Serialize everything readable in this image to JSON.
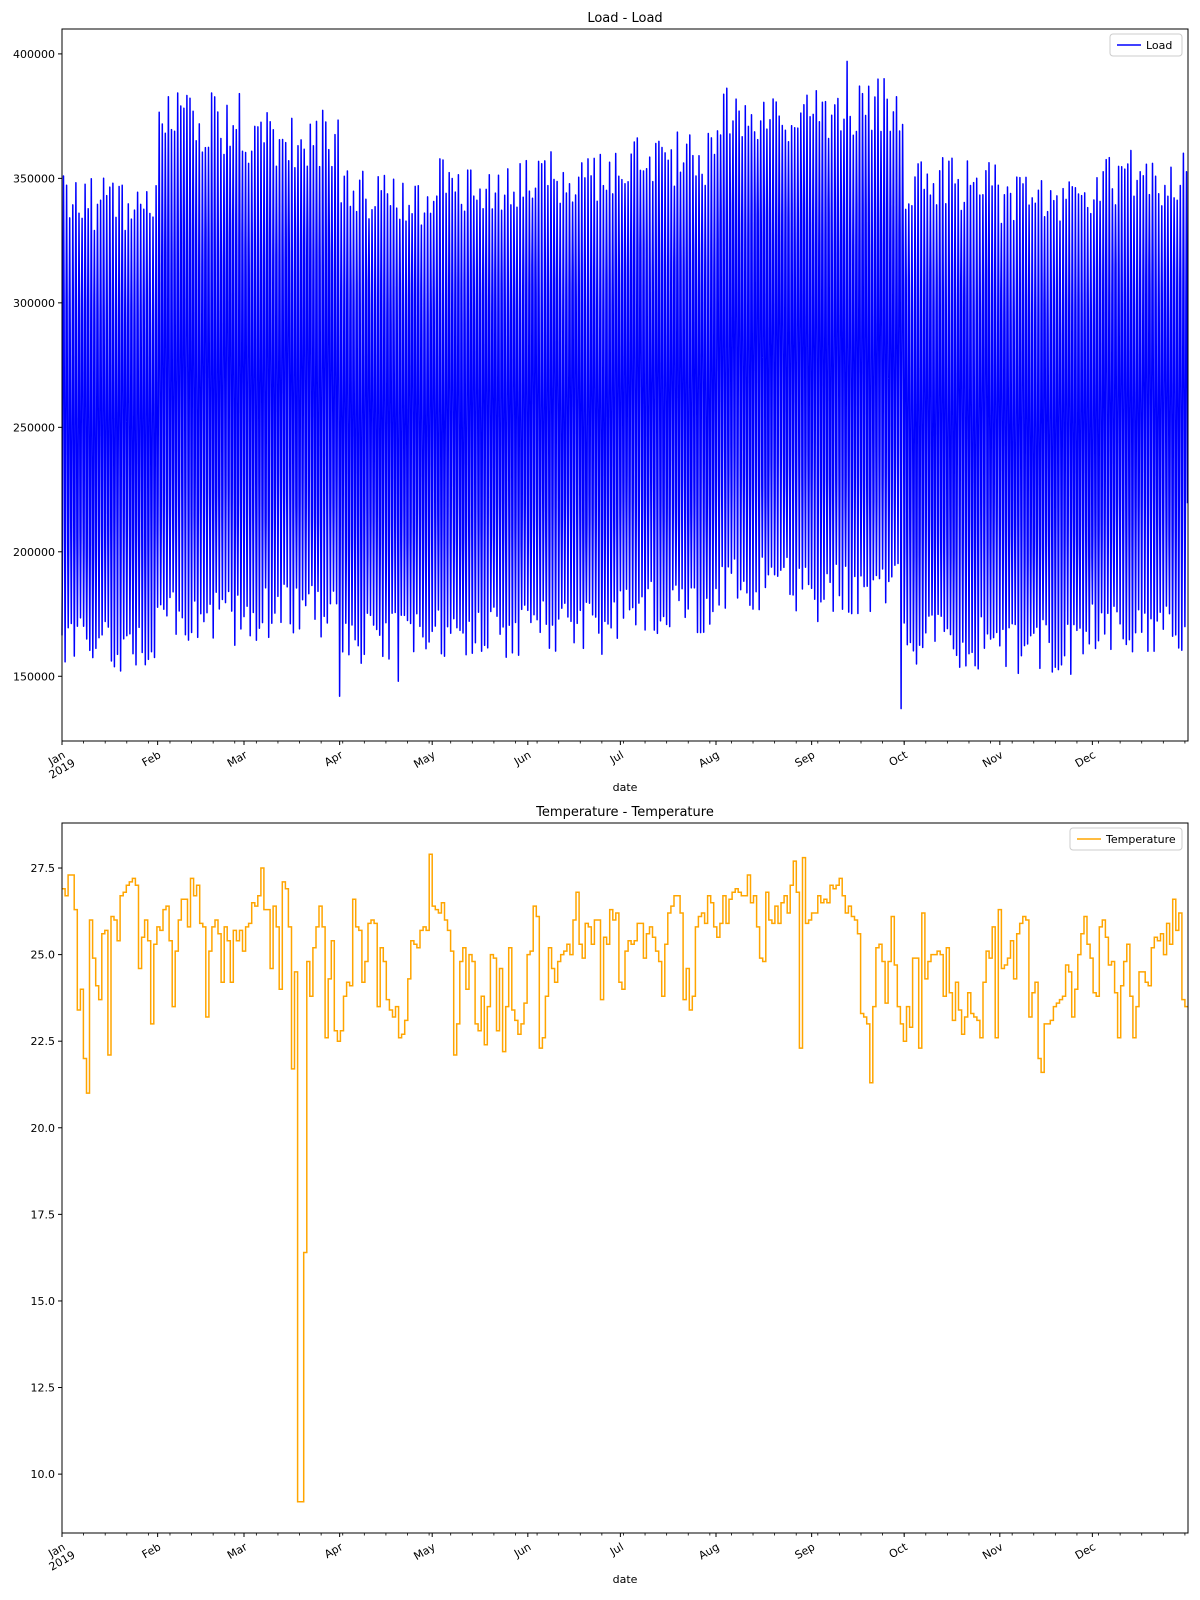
{
  "chart_data": [
    {
      "type": "line",
      "title": "Load - Load",
      "xlabel": "date",
      "ylabel": "",
      "x_range": [
        "2019-01-01",
        "2019-12-31"
      ],
      "ylim": [
        124000,
        410000
      ],
      "y_ticks": [
        150000,
        200000,
        250000,
        300000,
        350000,
        400000
      ],
      "y_tick_labels": [
        "150000",
        "200000",
        "250000",
        "300000",
        "350000",
        "400000"
      ],
      "x_tick_labels": [
        {
          "date": "2019-01-01",
          "label": "Jan",
          "sublabel": "2019"
        },
        {
          "date": "2019-02-01",
          "label": "Feb"
        },
        {
          "date": "2019-03-01",
          "label": "Mar"
        },
        {
          "date": "2019-04-01",
          "label": "Apr"
        },
        {
          "date": "2019-05-01",
          "label": "May"
        },
        {
          "date": "2019-06-01",
          "label": "Jun"
        },
        {
          "date": "2019-07-01",
          "label": "Jul"
        },
        {
          "date": "2019-08-01",
          "label": "Aug"
        },
        {
          "date": "2019-09-01",
          "label": "Sep"
        },
        {
          "date": "2019-10-01",
          "label": "Oct"
        },
        {
          "date": "2019-11-01",
          "label": "Nov"
        },
        {
          "date": "2019-12-01",
          "label": "Dec"
        }
      ],
      "legend_position": "top-right",
      "grid": false,
      "series": [
        {
          "name": "Load",
          "color": "#0000ff",
          "daily_profile": "each day swings from a night minimum to an afternoon peak",
          "monthly_envelope": [
            {
              "month": "Jan",
              "daily_min": 163000,
              "daily_max": 340000
            },
            {
              "month": "Feb",
              "daily_min": 172000,
              "daily_max": 372000
            },
            {
              "month": "Mar",
              "daily_min": 176000,
              "daily_max": 366000
            },
            {
              "month": "Apr",
              "daily_min": 166000,
              "daily_max": 342000
            },
            {
              "month": "May",
              "daily_min": 168000,
              "daily_max": 348000
            },
            {
              "month": "Jun",
              "daily_min": 170000,
              "daily_max": 350000
            },
            {
              "month": "Jul",
              "daily_min": 178000,
              "daily_max": 358000
            },
            {
              "month": "Aug",
              "daily_min": 186000,
              "daily_max": 376000
            },
            {
              "month": "Sep",
              "daily_min": 184000,
              "daily_max": 378000
            },
            {
              "month": "Oct",
              "daily_min": 164000,
              "daily_max": 348000
            },
            {
              "month": "Nov",
              "daily_min": 162000,
              "daily_max": 342000
            },
            {
              "month": "Dec",
              "daily_min": 170000,
              "daily_max": 350000
            }
          ],
          "notable_points": [
            {
              "x": "2019-04-01",
              "y": 142000
            },
            {
              "x": "2019-04-20",
              "y": 148000
            },
            {
              "x": "2019-09-12",
              "y": 397000
            },
            {
              "x": "2019-09-30",
              "y": 137000
            }
          ]
        }
      ]
    },
    {
      "type": "line",
      "title": "Temperature - Temperature",
      "xlabel": "date",
      "ylabel": "",
      "x_range": [
        "2019-01-01",
        "2019-12-31"
      ],
      "ylim": [
        8.3,
        28.8
      ],
      "y_ticks": [
        10.0,
        12.5,
        15.0,
        17.5,
        20.0,
        22.5,
        25.0,
        27.5
      ],
      "y_tick_labels": [
        "10.0",
        "12.5",
        "15.0",
        "17.5",
        "20.0",
        "22.5",
        "25.0",
        "27.5"
      ],
      "x_tick_labels": [
        {
          "date": "2019-01-01",
          "label": "Jan",
          "sublabel": "2019"
        },
        {
          "date": "2019-02-01",
          "label": "Feb"
        },
        {
          "date": "2019-03-01",
          "label": "Mar"
        },
        {
          "date": "2019-04-01",
          "label": "Apr"
        },
        {
          "date": "2019-05-01",
          "label": "May"
        },
        {
          "date": "2019-06-01",
          "label": "Jun"
        },
        {
          "date": "2019-07-01",
          "label": "Jul"
        },
        {
          "date": "2019-08-01",
          "label": "Aug"
        },
        {
          "date": "2019-09-01",
          "label": "Sep"
        },
        {
          "date": "2019-10-01",
          "label": "Oct"
        },
        {
          "date": "2019-11-01",
          "label": "Nov"
        },
        {
          "date": "2019-12-01",
          "label": "Dec"
        }
      ],
      "legend_position": "top-right",
      "grid": false,
      "series": [
        {
          "name": "Temperature",
          "color": "#ffa500",
          "step": true,
          "daily_values": [
            26.9,
            26.7,
            27.3,
            27.3,
            26.3,
            23.4,
            24.0,
            22.0,
            21.0,
            26.0,
            24.9,
            24.1,
            23.7,
            25.6,
            25.7,
            22.1,
            26.1,
            26.0,
            25.4,
            26.7,
            26.8,
            27.0,
            27.1,
            27.2,
            27.0,
            24.6,
            25.5,
            26.0,
            25.4,
            23.0,
            25.3,
            25.8,
            25.7,
            26.3,
            26.4,
            25.4,
            23.5,
            25.1,
            26.0,
            26.6,
            26.6,
            25.8,
            27.2,
            26.7,
            27.0,
            25.9,
            25.8,
            23.2,
            25.1,
            25.8,
            26.0,
            25.6,
            24.2,
            25.8,
            25.4,
            24.2,
            25.7,
            25.4,
            25.7,
            25.1,
            25.8,
            25.9,
            26.5,
            26.4,
            26.7,
            27.5,
            26.3,
            26.3,
            24.6,
            26.4,
            25.8,
            24.0,
            27.1,
            26.9,
            25.8,
            21.7,
            24.5,
            9.2,
            9.2,
            16.4,
            24.8,
            23.8,
            25.2,
            25.8,
            26.4,
            25.8,
            22.6,
            24.3,
            25.4,
            22.8,
            22.5,
            22.8,
            23.8,
            24.2,
            24.1,
            26.6,
            25.8,
            25.7,
            24.2,
            24.8,
            25.9,
            26.0,
            25.9,
            23.5,
            25.2,
            24.8,
            23.7,
            23.4,
            23.2,
            23.5,
            22.6,
            22.7,
            23.1,
            24.3,
            25.4,
            25.3,
            25.2,
            25.7,
            25.8,
            25.7,
            27.9,
            26.4,
            26.3,
            26.2,
            26.5,
            26.0,
            25.7,
            25.1,
            22.1,
            23.0,
            24.8,
            25.2,
            24.0,
            25.0,
            24.8,
            23.0,
            22.8,
            23.8,
            22.4,
            23.5,
            25.0,
            24.9,
            22.8,
            24.6,
            22.2,
            23.5,
            25.2,
            23.4,
            23.1,
            22.7,
            23.0,
            23.6,
            25.0,
            25.1,
            26.4,
            26.1,
            22.3,
            22.6,
            23.8,
            25.2,
            24.6,
            24.2,
            24.8,
            25.0,
            25.1,
            25.3,
            25.0,
            26.0,
            26.8,
            25.3,
            24.9,
            25.9,
            25.8,
            25.3,
            26.0,
            26.0,
            23.7,
            25.5,
            25.3,
            26.3,
            26.0,
            26.2,
            24.2,
            24.0,
            25.1,
            25.4,
            25.3,
            25.4,
            25.9,
            25.9,
            24.9,
            25.6,
            25.8,
            25.5,
            25.1,
            24.8,
            23.8,
            25.3,
            26.2,
            26.4,
            26.7,
            26.7,
            26.2,
            23.7,
            24.6,
            23.4,
            23.8,
            25.8,
            26.1,
            26.2,
            25.9,
            26.7,
            26.5,
            25.8,
            25.5,
            25.9,
            26.7,
            25.9,
            26.6,
            26.8,
            26.9,
            26.8,
            26.7,
            26.7,
            27.3,
            26.5,
            26.7,
            25.8,
            24.9,
            24.8,
            26.8,
            26.0,
            25.9,
            26.4,
            25.9,
            26.5,
            26.7,
            26.2,
            27.0,
            27.7,
            26.8,
            22.3,
            27.8,
            25.9,
            26.0,
            26.2,
            26.2,
            26.7,
            26.5,
            26.6,
            26.5,
            27.0,
            26.9,
            27.0,
            27.2,
            26.7,
            26.2,
            26.4,
            26.1,
            26.0,
            25.6,
            23.3,
            23.2,
            23.0,
            21.3,
            23.5,
            25.2,
            25.3,
            24.8,
            23.6,
            24.8,
            26.1,
            24.7,
            23.5,
            23.0,
            22.5,
            23.5,
            22.9,
            24.9,
            24.9,
            22.3,
            26.2,
            24.3,
            24.8,
            25.0,
            25.0,
            25.1,
            25.0,
            23.8,
            25.2,
            23.9,
            23.1,
            24.2,
            23.4,
            22.7,
            23.2,
            23.9,
            23.3,
            23.2,
            23.1,
            22.6,
            24.2,
            25.1,
            24.9,
            25.8,
            22.6,
            26.3,
            24.6,
            24.7,
            24.9,
            25.4,
            24.3,
            25.6,
            25.9,
            26.1,
            26.0,
            23.2,
            23.9,
            24.2,
            22.0,
            21.6,
            23.0,
            23.0,
            23.1,
            23.5,
            23.6,
            23.7,
            23.8,
            24.7,
            24.5,
            23.2,
            24.0,
            25.0,
            25.6,
            26.1,
            25.3,
            24.9,
            23.9,
            23.8,
            25.8,
            26.0,
            25.5,
            24.7,
            24.8,
            23.9,
            22.6,
            24.1,
            24.8,
            25.3,
            23.8,
            22.6,
            23.5,
            24.5,
            24.5,
            24.2,
            24.1,
            25.2,
            25.5,
            25.4,
            25.6,
            25.0,
            25.9,
            25.3,
            26.6,
            25.7,
            26.2,
            23.7,
            23.5
          ]
        }
      ]
    }
  ]
}
